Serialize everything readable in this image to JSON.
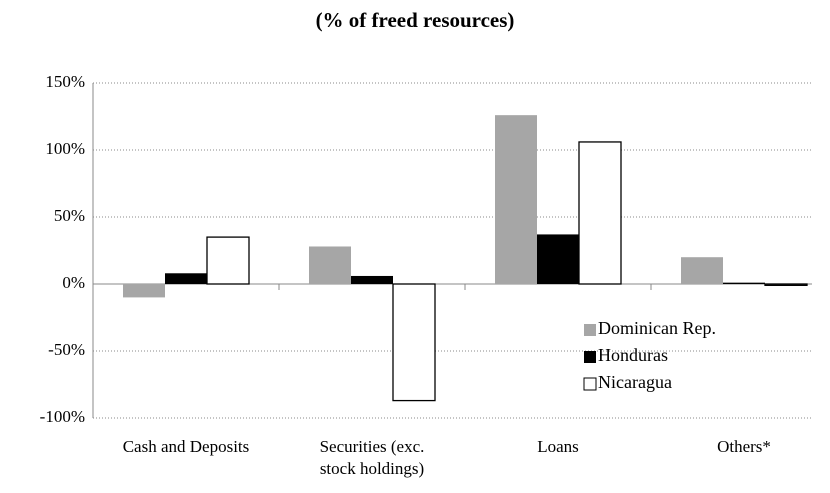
{
  "chart_data": {
    "type": "bar",
    "title": "(% of freed resources)",
    "categories": [
      "Cash and Deposits",
      "Securities (exc. stock holdings)",
      "Loans",
      "Others*"
    ],
    "series": [
      {
        "name": "Dominican Rep.",
        "color": "#a6a6a6",
        "values": [
          -10,
          28,
          126,
          20
        ]
      },
      {
        "name": "Honduras",
        "color": "#000000",
        "values": [
          8,
          6,
          37,
          1
        ]
      },
      {
        "name": "Nicaragua",
        "color": "#ffffff",
        "values": [
          35,
          -87,
          106,
          -1
        ]
      }
    ],
    "ylim": [
      -100,
      150
    ],
    "yticks": [
      {
        "value": -100,
        "label": "-100%"
      },
      {
        "value": -50,
        "label": "-50%"
      },
      {
        "value": 0,
        "label": "0%"
      },
      {
        "value": 50,
        "label": "50%"
      },
      {
        "value": 100,
        "label": "100%"
      },
      {
        "value": 150,
        "label": "150%"
      }
    ],
    "grid": true,
    "legend": "lower right"
  }
}
